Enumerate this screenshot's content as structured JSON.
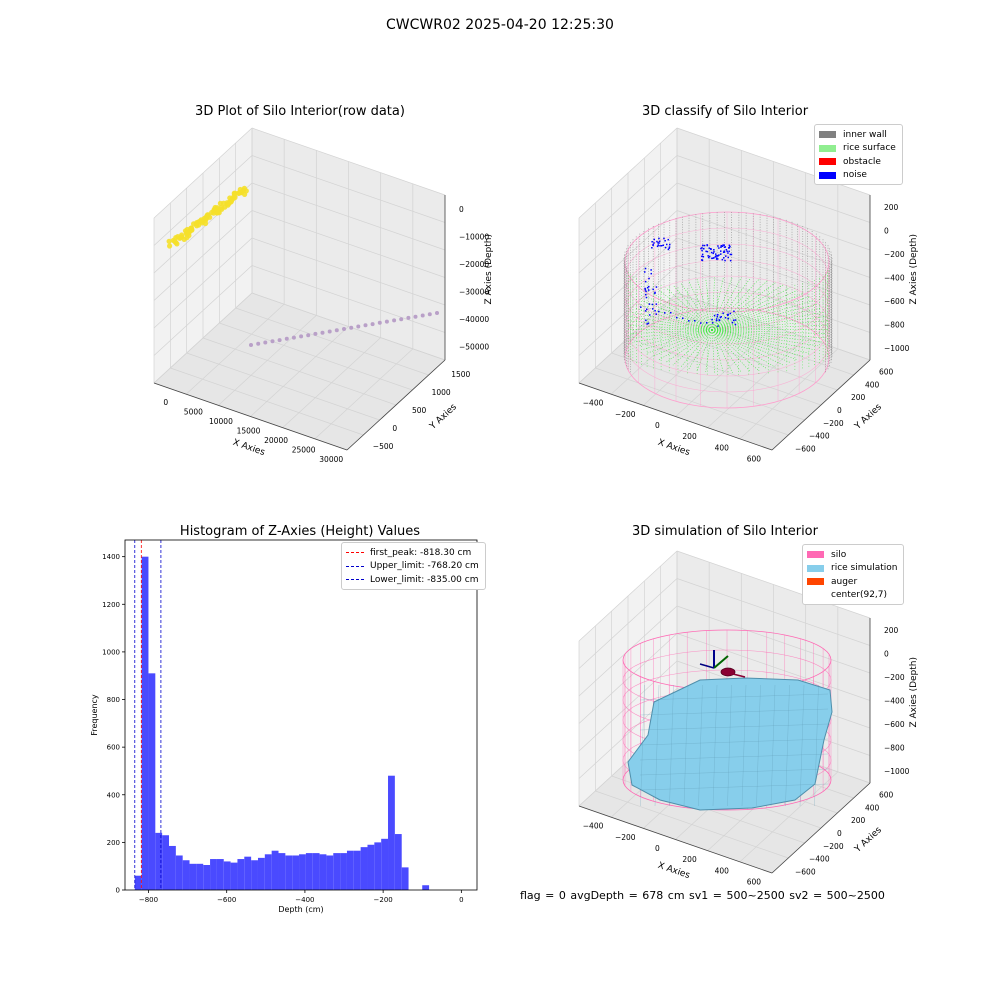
{
  "figure": {
    "title": "CWCWR02 2025-04-20 12:25:30",
    "status_line": "flag = 0     avgDepth = 678 cm  sv1 = 500~2500  sv2 = 500~2500"
  },
  "panels": {
    "raw": {
      "title": "3D Plot of Silo Interior(row data)",
      "xlabel": "X Axies",
      "ylabel": "Y Axies",
      "zlabel": "Z Axies (Depth)",
      "xticks": [
        "0",
        "5000",
        "10000",
        "15000",
        "20000",
        "25000",
        "30000"
      ],
      "yticks": [
        "1500",
        "1000",
        "500",
        "0",
        "−500"
      ],
      "zticks": [
        "0",
        "−10000",
        "−20000",
        "−30000",
        "−40000",
        "−50000"
      ]
    },
    "classify": {
      "title": "3D classify of Silo Interior",
      "xlabel": "X Axies",
      "ylabel": "Y Axies",
      "zlabel": "Z Axies (Depth)",
      "xticks": [
        "−400",
        "−200",
        "0",
        "200",
        "400",
        "600"
      ],
      "yticks": [
        "600",
        "400",
        "200",
        "0",
        "−200",
        "−400",
        "−600"
      ],
      "zticks": [
        "200",
        "0",
        "−200",
        "−400",
        "−600",
        "−800",
        "−1000"
      ],
      "legend": [
        {
          "label": "inner wall",
          "color": "#808080"
        },
        {
          "label": "rice surface",
          "color": "#90ee90"
        },
        {
          "label": "obstacle",
          "color": "#ff0000"
        },
        {
          "label": "noise",
          "color": "#0000ff"
        }
      ]
    },
    "simulation": {
      "title": "3D simulation of Silo Interior",
      "xlabel": "X Axies",
      "ylabel": "Y Axies",
      "zlabel": "Z Axies (Depth)",
      "xticks": [
        "−400",
        "−200",
        "0",
        "200",
        "400",
        "600"
      ],
      "yticks": [
        "600",
        "400",
        "200",
        "0",
        "−200",
        "−400",
        "−600"
      ],
      "zticks": [
        "200",
        "0",
        "−200",
        "−400",
        "−600",
        "−800",
        "−1000"
      ],
      "legend": [
        {
          "label": "silo",
          "color": "#ff69b4"
        },
        {
          "label": "rice simulation",
          "color": "#87ceeb"
        },
        {
          "label": "auger",
          "color": "#ff4500"
        },
        {
          "label": "center(92,7)",
          "color": ""
        }
      ]
    }
  },
  "chart_data": {
    "type": "bar",
    "title": "Histogram of Z-Axies (Height) Values",
    "xlabel": "Depth (cm)",
    "ylabel": "Frequency",
    "xlim": [
      -860,
      40
    ],
    "ylim": [
      0,
      1470
    ],
    "xticks": [
      -800,
      -600,
      -400,
      -200,
      0
    ],
    "xtick_labels": [
      "−800",
      "−600",
      "−400",
      "−200",
      "0"
    ],
    "yticks": [
      0,
      200,
      400,
      600,
      800,
      1000,
      1200,
      1400
    ],
    "bar_color": "#4a4aff",
    "bin_start": -835,
    "bin_width": 17.5,
    "values": [
      60,
      1400,
      910,
      240,
      230,
      185,
      145,
      125,
      110,
      110,
      105,
      130,
      130,
      120,
      115,
      130,
      140,
      125,
      135,
      150,
      165,
      155,
      145,
      145,
      150,
      155,
      155,
      150,
      145,
      155,
      155,
      165,
      165,
      180,
      190,
      200,
      215,
      480,
      235,
      95,
      0,
      0,
      20
    ],
    "vlines": [
      {
        "x": -818.3,
        "color": "#ff0000",
        "label": "first_peak: -818.30 cm"
      },
      {
        "x": -768.2,
        "color": "#0000cc",
        "label": "Upper_limit: -768.20 cm"
      },
      {
        "x": -835.0,
        "color": "#0000cc",
        "label": "Lower_limit: -835.00 cm"
      }
    ]
  }
}
